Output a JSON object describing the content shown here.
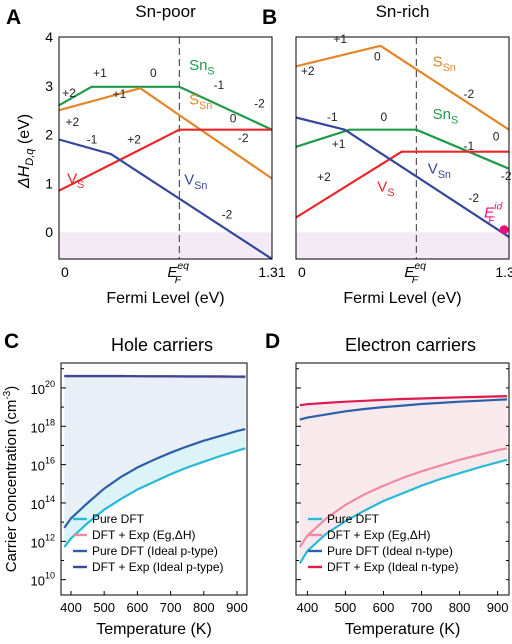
{
  "colors": {
    "green": "#1f9a48",
    "orange": "#e2862a",
    "red": "#e8262b",
    "navy": "#34479a",
    "cyan": "#27b9d8",
    "pink": "#ef8aa2",
    "blue": "#2d5fa8",
    "crimson": "#de1b4c",
    "shade_top": "#e4ecf6",
    "shade_cyan": "#d6f1f6",
    "shade_pink": "#f7e6e9",
    "band": "#f3eaf5"
  },
  "chart_data": [
    {
      "panel": "A",
      "type": "line",
      "title": "Sn-poor",
      "xlabel": "Fermi Level (eV)",
      "ylabel": "ΔH",
      "ylabel_sub": "D,q",
      "ylabel_unit": " (eV)",
      "xlim": [
        0,
        1.31
      ],
      "ylim": [
        -0.55,
        4
      ],
      "yticks": [
        "0",
        "1",
        "2",
        "3",
        "4"
      ],
      "x_tick_left": "0",
      "x_tick_right": "1.31",
      "ef_label": "E",
      "ef_sub": "F",
      "ef_sup": "eq",
      "ef_value": 0.74,
      "series": [
        {
          "name": "Sn",
          "sub": "S",
          "color": "green",
          "points": [
            [
              0,
              2.6
            ],
            [
              0.2,
              2.98
            ],
            [
              0.74,
              2.98
            ],
            [
              1.31,
              2.1
            ]
          ]
        },
        {
          "name": "S",
          "sub": "Sn",
          "color": "orange",
          "points": [
            [
              0,
              2.5
            ],
            [
              0.5,
              2.95
            ],
            [
              0.74,
              2.4
            ],
            [
              1.31,
              1.1
            ]
          ]
        },
        {
          "name": "V",
          "sub": "S",
          "color": "red",
          "points": [
            [
              0,
              0.85
            ],
            [
              0.74,
              2.1
            ],
            [
              1.31,
              2.1
            ]
          ]
        },
        {
          "name": "V",
          "sub": "Sn",
          "color": "navy",
          "points": [
            [
              0,
              1.9
            ],
            [
              0.32,
              1.6
            ],
            [
              1.31,
              -0.55
            ]
          ]
        }
      ],
      "labels": [
        {
          "text": "+2",
          "x": 0.02,
          "y": 2.77
        },
        {
          "text": "+1",
          "x": 0.21,
          "y": 3.18
        },
        {
          "text": "0",
          "x": 0.56,
          "y": 3.18
        },
        {
          "text": "-1",
          "x": 0.95,
          "y": 2.93
        },
        {
          "text": "-2",
          "x": 1.2,
          "y": 2.55
        },
        {
          "text": "+1",
          "x": 0.33,
          "y": 2.75
        },
        {
          "text": "+2",
          "x": 0.04,
          "y": 2.18
        },
        {
          "text": "0",
          "x": 1.05,
          "y": 2.25
        },
        {
          "text": "-2",
          "x": 1.1,
          "y": 1.85
        },
        {
          "text": "-1",
          "x": 0.17,
          "y": 1.82
        },
        {
          "text": "+2",
          "x": 0.42,
          "y": 1.82
        },
        {
          "text": "-2",
          "x": 1.0,
          "y": 0.28
        }
      ],
      "series_labels": [
        {
          "main": "Sn",
          "sub": "S",
          "color": "green",
          "x": 0.8,
          "y": 3.32
        },
        {
          "main": "S",
          "sub": "Sn",
          "color": "orange",
          "x": 0.8,
          "y": 2.62
        },
        {
          "main": "V",
          "sub": "S",
          "color": "red",
          "x": 0.05,
          "y": 1.0
        },
        {
          "main": "V",
          "sub": "Sn",
          "color": "navy",
          "x": 0.77,
          "y": 0.98
        }
      ]
    },
    {
      "panel": "B",
      "type": "line",
      "title": "Sn-rich",
      "xlabel": "Fermi Level (eV)",
      "xlim": [
        0,
        1.31
      ],
      "ylim": [
        -0.55,
        4
      ],
      "x_tick_left": "0",
      "x_tick_right": "1.31",
      "ef_label": "E",
      "ef_sub": "F",
      "ef_sup": "eq",
      "ef_value": 0.74,
      "marker": {
        "x": 1.28,
        "y": 0.05,
        "label": "E",
        "sub": "F",
        "sup": "id",
        "color": "#e3127a"
      },
      "series": [
        {
          "name": "S",
          "sub": "Sn",
          "color": "orange",
          "points": [
            [
              0,
              3.4
            ],
            [
              0.52,
              3.82
            ],
            [
              1.31,
              2.1
            ]
          ]
        },
        {
          "name": "Sn",
          "sub": "S",
          "color": "green",
          "points": [
            [
              0,
              1.75
            ],
            [
              0.33,
              2.1
            ],
            [
              0.74,
              2.1
            ],
            [
              1.31,
              1.3
            ]
          ]
        },
        {
          "name": "V",
          "sub": "S",
          "color": "red",
          "points": [
            [
              0,
              0.3
            ],
            [
              0.65,
              1.65
            ],
            [
              1.31,
              1.65
            ]
          ]
        },
        {
          "name": "V",
          "sub": "Sn",
          "color": "navy",
          "points": [
            [
              0,
              2.35
            ],
            [
              0.3,
              2.1
            ],
            [
              1.31,
              -0.1
            ]
          ]
        }
      ],
      "labels": [
        {
          "text": "+1",
          "x": 0.23,
          "y": 3.88
        },
        {
          "text": "+2",
          "x": 0.03,
          "y": 3.22
        },
        {
          "text": "0",
          "x": 0.48,
          "y": 3.52
        },
        {
          "text": "-2",
          "x": 1.03,
          "y": 2.75
        },
        {
          "text": "-1",
          "x": 0.19,
          "y": 2.28
        },
        {
          "text": "0",
          "x": 0.52,
          "y": 2.28
        },
        {
          "text": "-1",
          "x": 1.03,
          "y": 1.68
        },
        {
          "text": "0",
          "x": 1.21,
          "y": 1.88
        },
        {
          "text": "-2",
          "x": 1.26,
          "y": 1.07
        },
        {
          "text": "+1",
          "x": 0.22,
          "y": 1.73
        },
        {
          "text": "+2",
          "x": 0.13,
          "y": 1.05
        },
        {
          "text": "-2",
          "x": 1.06,
          "y": 0.62
        }
      ],
      "series_labels": [
        {
          "main": "S",
          "sub": "Sn",
          "color": "orange",
          "x": 0.84,
          "y": 3.4
        },
        {
          "main": "Sn",
          "sub": "S",
          "color": "green",
          "x": 0.84,
          "y": 2.32
        },
        {
          "main": "V",
          "sub": "S",
          "color": "red",
          "x": 0.5,
          "y": 0.83
        },
        {
          "main": "V",
          "sub": "Sn",
          "color": "navy",
          "x": 0.81,
          "y": 1.2
        }
      ]
    },
    {
      "panel": "C",
      "type": "area",
      "title": "Hole carriers",
      "xlabel": "Temperature (K)",
      "ylabel": "Carrier Concentration (cm",
      "ylabel_sup": "-3",
      "ylabel_end": ")",
      "xlim": [
        370,
        930
      ],
      "ylim_log10": [
        9.2,
        21.3
      ],
      "xticks": [
        400,
        500,
        600,
        700,
        800,
        900
      ],
      "yticks_exp": [
        10,
        12,
        14,
        16,
        18,
        20
      ],
      "x": [
        380,
        400,
        450,
        500,
        550,
        600,
        650,
        700,
        750,
        800,
        850,
        900,
        925
      ],
      "series": [
        {
          "name": "Pure DFT",
          "color": "cyan",
          "log10_values": [
            11.7,
            12.15,
            12.95,
            13.65,
            14.2,
            14.7,
            15.1,
            15.5,
            15.85,
            16.15,
            16.45,
            16.72,
            16.85
          ]
        },
        {
          "name": "DFT + Exp (Eg,ΔH)",
          "color": "pink",
          "log10_values": [
            20.6,
            20.6,
            20.6,
            20.6,
            20.6,
            20.6,
            20.59,
            20.59,
            20.58,
            20.58,
            20.57,
            20.57,
            20.56
          ]
        },
        {
          "name": "Pure DFT (Ideal p-type)",
          "color": "blue",
          "log10_values": [
            12.7,
            13.2,
            14.0,
            14.75,
            15.35,
            15.85,
            16.25,
            16.62,
            16.95,
            17.25,
            17.5,
            17.75,
            17.85
          ]
        },
        {
          "name": "DFT + Exp (Ideal p-type)",
          "color": "navy",
          "log10_values": [
            20.62,
            20.62,
            20.62,
            20.62,
            20.62,
            20.61,
            20.61,
            20.61,
            20.6,
            20.6,
            20.6,
            20.59,
            20.59
          ]
        }
      ]
    },
    {
      "panel": "D",
      "type": "area",
      "title": "Electron carriers",
      "xlabel": "Temperature (K)",
      "xlim": [
        370,
        930
      ],
      "ylim_log10": [
        9.2,
        21.3
      ],
      "xticks": [
        400,
        500,
        600,
        700,
        800,
        900
      ],
      "x": [
        380,
        400,
        450,
        500,
        550,
        600,
        650,
        700,
        750,
        800,
        850,
        900,
        925
      ],
      "series": [
        {
          "name": "Pure DFT",
          "color": "cyan",
          "log10_values": [
            10.85,
            11.5,
            12.4,
            13.05,
            13.6,
            14.1,
            14.5,
            14.9,
            15.25,
            15.55,
            15.85,
            16.12,
            16.25
          ]
        },
        {
          "name": "DFT + Exp (Eg,ΔH)",
          "color": "pink",
          "log10_values": [
            11.7,
            12.3,
            13.2,
            13.9,
            14.45,
            14.9,
            15.3,
            15.65,
            15.95,
            16.25,
            16.5,
            16.75,
            16.85
          ]
        },
        {
          "name": "Pure DFT (Ideal n-type)",
          "color": "blue",
          "log10_values": [
            18.35,
            18.45,
            18.62,
            18.78,
            18.9,
            19.0,
            19.08,
            19.16,
            19.22,
            19.28,
            19.33,
            19.38,
            19.4
          ]
        },
        {
          "name": "DFT + Exp (Ideal n-type)",
          "color": "crimson",
          "log10_values": [
            19.1,
            19.15,
            19.22,
            19.28,
            19.33,
            19.38,
            19.42,
            19.45,
            19.48,
            19.51,
            19.53,
            19.56,
            19.57
          ]
        }
      ]
    }
  ]
}
